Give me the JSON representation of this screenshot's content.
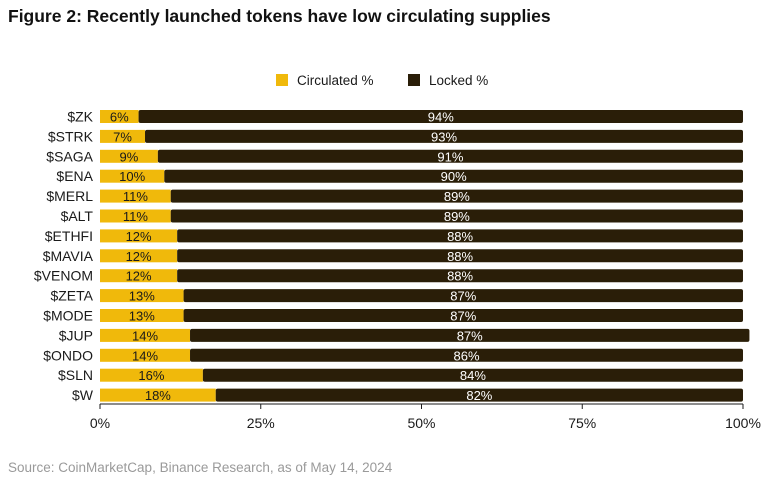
{
  "title": "Figure 2: Recently launched tokens have low circulating supplies",
  "source": "Source: CoinMarketCap, Binance Research, as of May 14, 2024",
  "colors": {
    "circulated": "#f0b90b",
    "locked": "#2a1e08",
    "axis": "#1a1a1a"
  },
  "chart_data": {
    "type": "bar",
    "orientation": "horizontal",
    "stacked": true,
    "categories": [
      "$ZK",
      "$STRK",
      "$SAGA",
      "$ENA",
      "$MERL",
      "$ALT",
      "$ETHFI",
      "$MAVIA",
      "$VENOM",
      "$ZETA",
      "$MODE",
      "$JUP",
      "$ONDO",
      "$SLN",
      "$W"
    ],
    "series": [
      {
        "name": "Circulated %",
        "values": [
          6,
          7,
          9,
          10,
          11,
          11,
          12,
          12,
          12,
          13,
          13,
          14,
          14,
          16,
          18
        ],
        "labels": [
          "6%",
          "7%",
          "9%",
          "10%",
          "11%",
          "11%",
          "12%",
          "12%",
          "12%",
          "13%",
          "13%",
          "14%",
          "14%",
          "16%",
          "18%"
        ]
      },
      {
        "name": "Locked %",
        "values": [
          94,
          93,
          91,
          90,
          89,
          89,
          88,
          88,
          88,
          87,
          87,
          87,
          86,
          84,
          82
        ],
        "labels": [
          "94%",
          "93%",
          "91%",
          "90%",
          "89%",
          "89%",
          "88%",
          "88%",
          "88%",
          "87%",
          "87%",
          "87%",
          "86%",
          "84%",
          "82%"
        ]
      }
    ],
    "xlim": [
      0,
      100
    ],
    "xticks": [
      0,
      25,
      50,
      75,
      100
    ],
    "xtick_labels": [
      "0%",
      "25%",
      "50%",
      "75%",
      "100%"
    ],
    "legend_position": "top-center",
    "grid": false
  }
}
